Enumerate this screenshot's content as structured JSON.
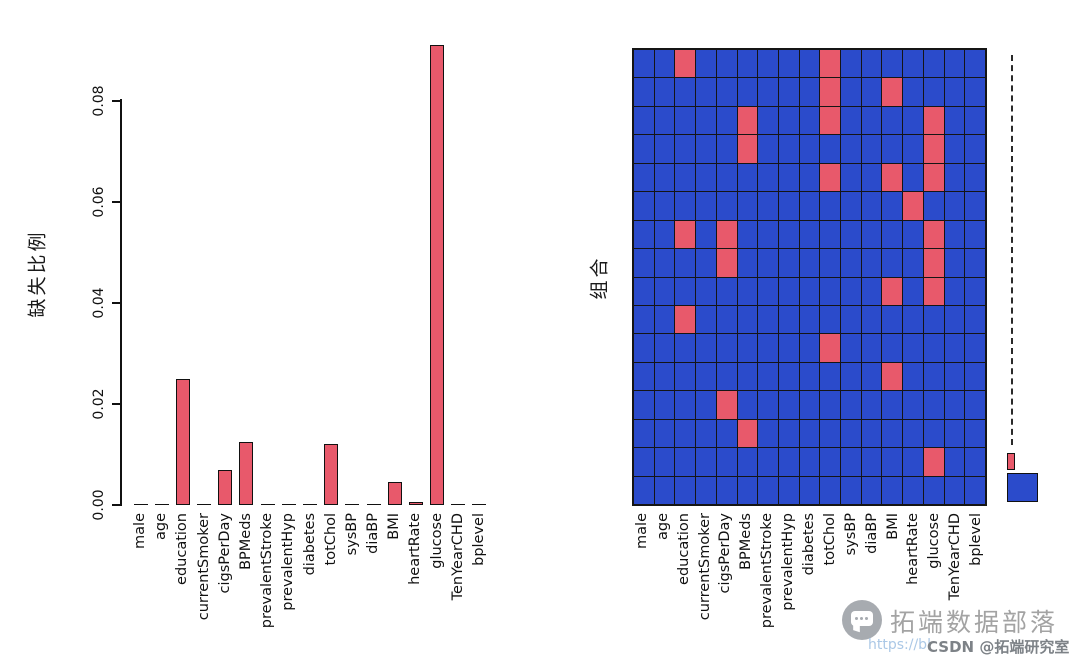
{
  "figure": {
    "background": "#ffffff"
  },
  "colors": {
    "missing": "#e8596b",
    "observed": "#2b4bcb",
    "axis": "#111111"
  },
  "chart_data": [
    {
      "type": "bar",
      "title": "",
      "xlabel": "",
      "ylabel": "缺失比例",
      "categories": [
        "male",
        "age",
        "education",
        "currentSmoker",
        "cigsPerDay",
        "BPMeds",
        "prevalentStroke",
        "prevalentHyp",
        "diabetes",
        "totChol",
        "sysBP",
        "diaBP",
        "BMI",
        "heartRate",
        "glucose",
        "TenYearCHD",
        "bplevel"
      ],
      "values": [
        0,
        0,
        0.025,
        0,
        0.007,
        0.0125,
        0,
        0,
        0,
        0.012,
        0,
        0,
        0.0046,
        0.0006,
        0.091,
        0,
        0
      ],
      "yticks": [
        0.0,
        0.02,
        0.04,
        0.06,
        0.08
      ],
      "ytick_labels": [
        "0.00",
        "0.02",
        "0.04",
        "0.06",
        "0.08"
      ],
      "ylim": [
        0,
        0.092
      ],
      "bar_color": "#e8596b",
      "grid": false,
      "legend_position": "none"
    },
    {
      "type": "heatmap",
      "title": "",
      "ylabel": "组合",
      "categories": [
        "male",
        "age",
        "education",
        "currentSmoker",
        "cigsPerDay",
        "BPMeds",
        "prevalentStroke",
        "prevalentHyp",
        "diabetes",
        "totChol",
        "sysBP",
        "diaBP",
        "BMI",
        "heartRate",
        "glucose",
        "TenYearCHD",
        "bplevel"
      ],
      "cell_colors": {
        "observed": "#2b4bcb",
        "missing": "#e8596b"
      },
      "combinations": [
        {
          "missing": [
            "education",
            "totChol"
          ]
        },
        {
          "missing": [
            "totChol",
            "BMI"
          ]
        },
        {
          "missing": [
            "BPMeds",
            "totChol",
            "glucose"
          ]
        },
        {
          "missing": [
            "BPMeds",
            "glucose"
          ]
        },
        {
          "missing": [
            "totChol",
            "BMI",
            "glucose"
          ]
        },
        {
          "missing": [
            "heartRate"
          ]
        },
        {
          "missing": [
            "education",
            "cigsPerDay",
            "glucose"
          ]
        },
        {
          "missing": [
            "cigsPerDay",
            "glucose"
          ]
        },
        {
          "missing": [
            "BMI",
            "glucose"
          ]
        },
        {
          "missing": [
            "education"
          ]
        },
        {
          "missing": [
            "totChol"
          ]
        },
        {
          "missing": [
            "BMI"
          ]
        },
        {
          "missing": [
            "cigsPerDay"
          ]
        },
        {
          "missing": [
            "BPMeds"
          ]
        },
        {
          "missing": [
            "glucose"
          ]
        },
        {
          "missing": []
        }
      ],
      "right_margin": {
        "axis_style": "dashed",
        "bars": [
          {
            "combination_row": 15,
            "color_key": "missing"
          },
          {
            "combination_row": 16,
            "color_key": "observed"
          }
        ]
      }
    }
  ],
  "watermark": {
    "brand": "拓端数据部落",
    "url": "https://bl",
    "credit": "CSDN @拓端研究室"
  }
}
